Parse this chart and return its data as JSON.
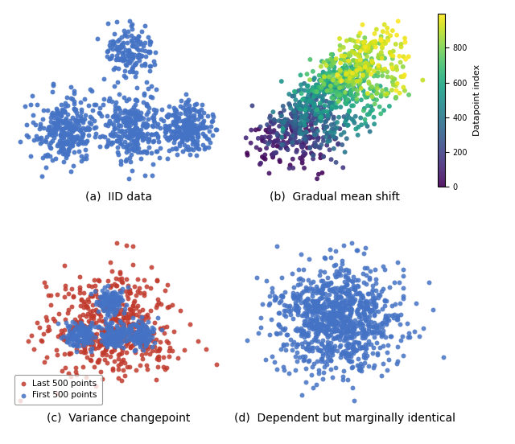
{
  "seed": 0,
  "n_points": 1000,
  "color_iid": "#4472C4",
  "color_first": "#4472C4",
  "color_last": "#C0392B",
  "cmap_gradual": "viridis",
  "colorbar_label": "Datapoint index",
  "colorbar_ticks": [
    0,
    200,
    400,
    600,
    800
  ],
  "title_a": "(a)  IID data",
  "title_b": "(b)  Gradual mean shift",
  "title_c": "(c)  Variance changepoint",
  "title_d": "(d)  Dependent but marginally identical",
  "legend_last": "Last 500 points",
  "legend_first": "First 500 points",
  "marker_size": 18,
  "figsize": [
    6.4,
    5.52
  ],
  "dpi": 100
}
